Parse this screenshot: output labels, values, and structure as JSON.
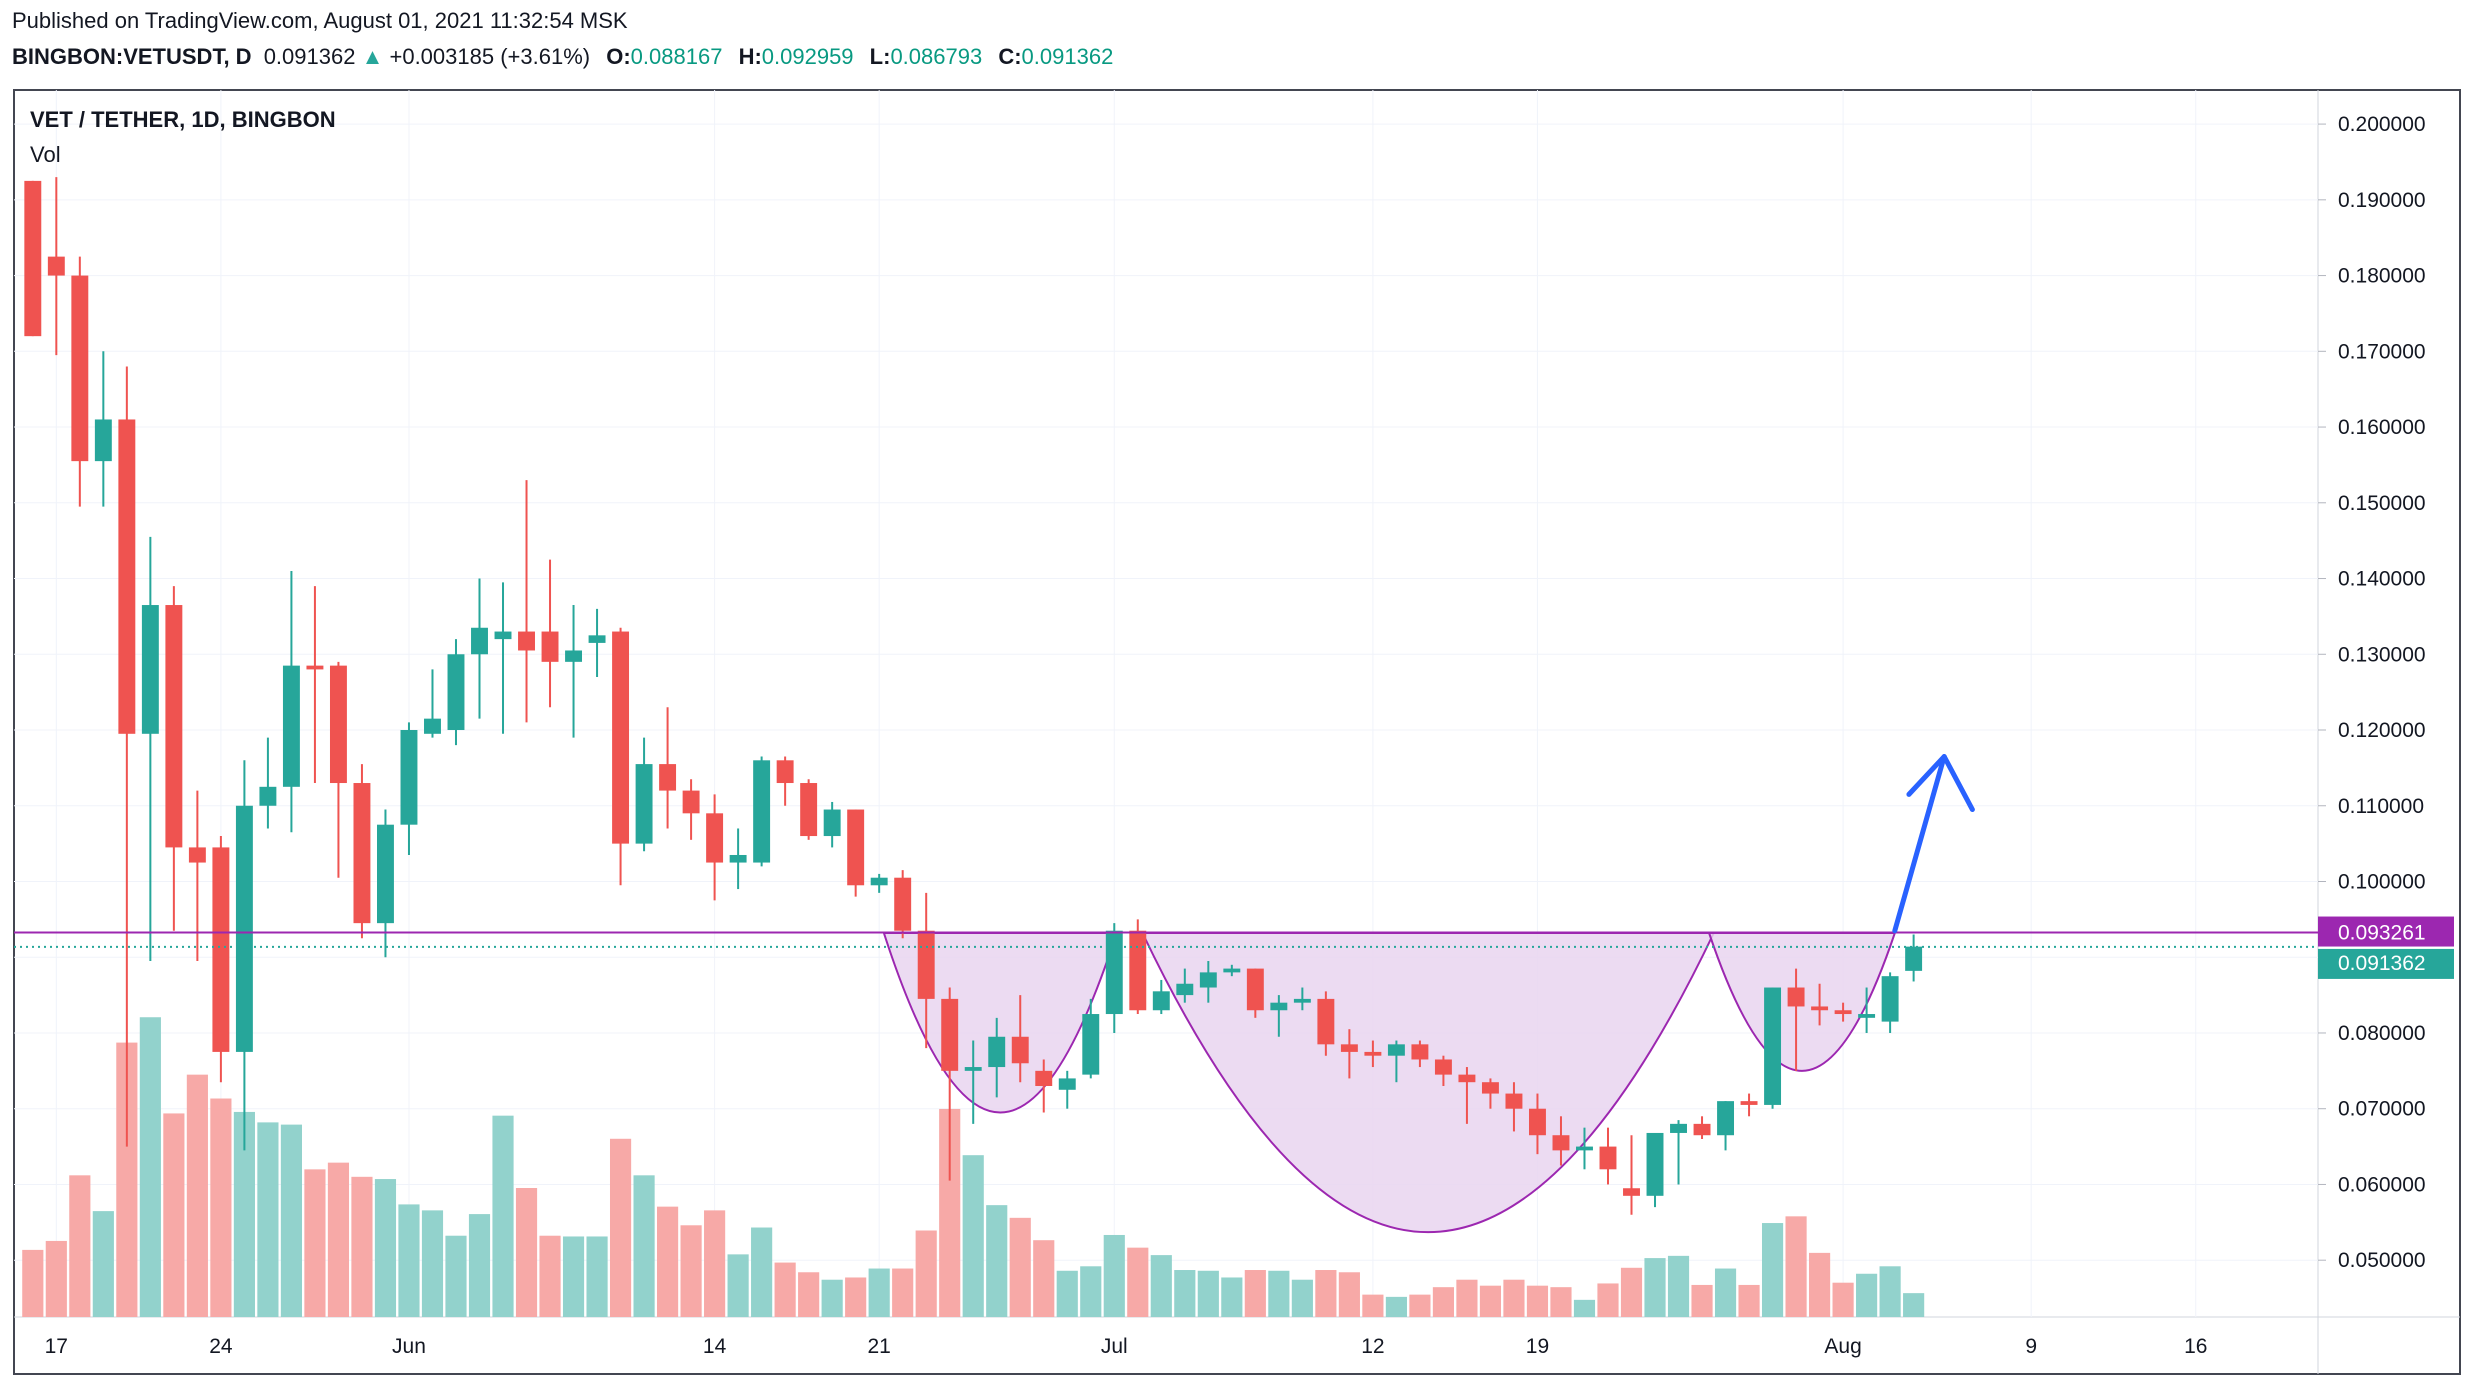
{
  "header": {
    "published": "Published on TradingView.com, August 01, 2021 11:32:54 MSK",
    "symbol": "BINGBON:VETUSDT, D",
    "last": "0.091362",
    "arrow": "▲",
    "change": "+0.003185 (+3.61%)",
    "o_label": "O:",
    "o_value": "0.088167",
    "h_label": "H:",
    "h_value": "0.092959",
    "l_label": "L:",
    "l_value": "0.086793",
    "c_label": "C:",
    "c_value": "0.091362"
  },
  "pane": {
    "title": "VET / TETHER, 1D, BINGBON",
    "volume_label": "Vol"
  },
  "colors": {
    "up": "#26a69a",
    "down": "#ef5350",
    "up_volume": "#92d2cc",
    "down_volume": "#f7a9a7",
    "pattern_fill": "#e9d5f0",
    "pattern_stroke": "#9c27b0",
    "arrow": "#2962ff",
    "resistance_badge": "#9c27b0",
    "price_badge": "#26a69a"
  },
  "chart_data": {
    "type": "candlestick",
    "y_axis": {
      "ticks": [
        "0.200000",
        "0.190000",
        "0.180000",
        "0.170000",
        "0.160000",
        "0.150000",
        "0.140000",
        "0.130000",
        "0.120000",
        "0.110000",
        "0.100000",
        "0.090000",
        "0.080000",
        "0.070000",
        "0.060000",
        "0.050000"
      ],
      "range": [
        0.0425,
        0.2045
      ]
    },
    "x_axis": {
      "ticks": [
        {
          "label": "17",
          "day": 0
        },
        {
          "label": "24",
          "day": 7
        },
        {
          "label": "Jun",
          "day": 15
        },
        {
          "label": "14",
          "day": 28
        },
        {
          "label": "21",
          "day": 35
        },
        {
          "label": "Jul",
          "day": 45
        },
        {
          "label": "12",
          "day": 56
        },
        {
          "label": "19",
          "day": 63
        },
        {
          "label": "Aug",
          "day": 76
        },
        {
          "label": "9",
          "day": 84
        },
        {
          "label": "16",
          "day": 91
        }
      ],
      "start_date": "2021-05-17",
      "day_range": [
        -1.8,
        96.2
      ]
    },
    "resistance": {
      "value": 0.093261,
      "label": "0.093261"
    },
    "last_price": {
      "value": 0.091362,
      "label": "0.091362"
    },
    "projection": {
      "from": [
        78.2,
        0.0935
      ],
      "to": [
        80.3,
        0.1165
      ],
      "head_left": [
        78.8,
        0.1115
      ],
      "head_right": [
        81.5,
        0.1095
      ]
    },
    "patterns": [
      {
        "name": "left-cup",
        "left_day": 35.2,
        "right_day": 45.1,
        "top": 0.0932,
        "bottom": 0.0695
      },
      {
        "name": "main-cup",
        "left_day": 46.2,
        "right_day": 70.5,
        "top": 0.0932,
        "bottom": 0.0537
      },
      {
        "name": "handle",
        "left_day": 70.3,
        "right_day": 78.2,
        "top": 0.0932,
        "bottom": 0.075
      }
    ],
    "candles": [
      {
        "d": -1,
        "o": 0.1925,
        "h": 0.1925,
        "l": 0.172,
        "c": 0.172,
        "v": 0.0515
      },
      {
        "d": 0,
        "o": 0.1825,
        "h": 0.193,
        "l": 0.1695,
        "c": 0.18,
        "v": 0.0527
      },
      {
        "d": 1,
        "o": 0.18,
        "h": 0.1825,
        "l": 0.1495,
        "c": 0.1555,
        "v": 0.0615
      },
      {
        "d": 2,
        "o": 0.1555,
        "h": 0.17,
        "l": 0.1495,
        "c": 0.161,
        "v": 0.0567
      },
      {
        "d": 3,
        "o": 0.161,
        "h": 0.168,
        "l": 0.065,
        "c": 0.1195,
        "v": 0.0793
      },
      {
        "d": 4,
        "o": 0.1195,
        "h": 0.1455,
        "l": 0.0895,
        "c": 0.1365,
        "v": 0.0827
      },
      {
        "d": 5,
        "o": 0.1365,
        "h": 0.139,
        "l": 0.0935,
        "c": 0.1045,
        "v": 0.0698
      },
      {
        "d": 6,
        "o": 0.1045,
        "h": 0.112,
        "l": 0.0895,
        "c": 0.1025,
        "v": 0.075
      },
      {
        "d": 7,
        "o": 0.1045,
        "h": 0.106,
        "l": 0.0735,
        "c": 0.0775,
        "v": 0.0718
      },
      {
        "d": 8,
        "o": 0.0775,
        "h": 0.116,
        "l": 0.0645,
        "c": 0.11,
        "v": 0.07
      },
      {
        "d": 9,
        "o": 0.11,
        "h": 0.119,
        "l": 0.107,
        "c": 0.1125,
        "v": 0.0686
      },
      {
        "d": 10,
        "o": 0.1125,
        "h": 0.141,
        "l": 0.1065,
        "c": 0.1285,
        "v": 0.0683
      },
      {
        "d": 11,
        "o": 0.1285,
        "h": 0.139,
        "l": 0.113,
        "c": 0.128,
        "v": 0.0623
      },
      {
        "d": 12,
        "o": 0.1285,
        "h": 0.129,
        "l": 0.1005,
        "c": 0.113,
        "v": 0.0632
      },
      {
        "d": 13,
        "o": 0.113,
        "h": 0.1155,
        "l": 0.0925,
        "c": 0.0945,
        "v": 0.0613
      },
      {
        "d": 14,
        "o": 0.0945,
        "h": 0.1095,
        "l": 0.09,
        "c": 0.1075,
        "v": 0.061
      },
      {
        "d": 15,
        "o": 0.1075,
        "h": 0.121,
        "l": 0.1035,
        "c": 0.12,
        "v": 0.0576
      },
      {
        "d": 16,
        "o": 0.1195,
        "h": 0.128,
        "l": 0.119,
        "c": 0.1215,
        "v": 0.0568
      },
      {
        "d": 17,
        "o": 0.12,
        "h": 0.132,
        "l": 0.118,
        "c": 0.13,
        "v": 0.0534
      },
      {
        "d": 18,
        "o": 0.13,
        "h": 0.14,
        "l": 0.1215,
        "c": 0.1335,
        "v": 0.0563
      },
      {
        "d": 19,
        "o": 0.132,
        "h": 0.1395,
        "l": 0.1195,
        "c": 0.133,
        "v": 0.0695
      },
      {
        "d": 20,
        "o": 0.133,
        "h": 0.153,
        "l": 0.121,
        "c": 0.1305,
        "v": 0.0598
      },
      {
        "d": 21,
        "o": 0.133,
        "h": 0.1425,
        "l": 0.123,
        "c": 0.129,
        "v": 0.0534
      },
      {
        "d": 22,
        "o": 0.129,
        "h": 0.1365,
        "l": 0.119,
        "c": 0.1305,
        "v": 0.0533
      },
      {
        "d": 23,
        "o": 0.1315,
        "h": 0.136,
        "l": 0.127,
        "c": 0.1325,
        "v": 0.0533
      },
      {
        "d": 24,
        "o": 0.133,
        "h": 0.1335,
        "l": 0.0995,
        "c": 0.105,
        "v": 0.0664
      },
      {
        "d": 25,
        "o": 0.105,
        "h": 0.119,
        "l": 0.104,
        "c": 0.1155,
        "v": 0.0615
      },
      {
        "d": 26,
        "o": 0.1155,
        "h": 0.123,
        "l": 0.107,
        "c": 0.112,
        "v": 0.0573
      },
      {
        "d": 27,
        "o": 0.112,
        "h": 0.1135,
        "l": 0.1055,
        "c": 0.109,
        "v": 0.0548
      },
      {
        "d": 28,
        "o": 0.109,
        "h": 0.1115,
        "l": 0.0975,
        "c": 0.1025,
        "v": 0.0568
      },
      {
        "d": 29,
        "o": 0.1025,
        "h": 0.107,
        "l": 0.099,
        "c": 0.1035,
        "v": 0.0509
      },
      {
        "d": 30,
        "o": 0.1025,
        "h": 0.1165,
        "l": 0.102,
        "c": 0.116,
        "v": 0.0545
      },
      {
        "d": 31,
        "o": 0.116,
        "h": 0.1165,
        "l": 0.11,
        "c": 0.113,
        "v": 0.0498
      },
      {
        "d": 32,
        "o": 0.113,
        "h": 0.1135,
        "l": 0.1055,
        "c": 0.106,
        "v": 0.0485
      },
      {
        "d": 33,
        "o": 0.106,
        "h": 0.1105,
        "l": 0.1045,
        "c": 0.1095,
        "v": 0.0475
      },
      {
        "d": 34,
        "o": 0.1095,
        "h": 0.1095,
        "l": 0.098,
        "c": 0.0995,
        "v": 0.0478
      },
      {
        "d": 35,
        "o": 0.0995,
        "h": 0.101,
        "l": 0.0985,
        "c": 0.1005,
        "v": 0.049
      },
      {
        "d": 36,
        "o": 0.1005,
        "h": 0.1015,
        "l": 0.0925,
        "c": 0.0935,
        "v": 0.049
      },
      {
        "d": 37,
        "o": 0.0935,
        "h": 0.0985,
        "l": 0.078,
        "c": 0.0845,
        "v": 0.0541
      },
      {
        "d": 38,
        "o": 0.0845,
        "h": 0.086,
        "l": 0.0605,
        "c": 0.075,
        "v": 0.0704
      },
      {
        "d": 39,
        "o": 0.075,
        "h": 0.079,
        "l": 0.068,
        "c": 0.0755,
        "v": 0.0642
      },
      {
        "d": 40,
        "o": 0.0755,
        "h": 0.082,
        "l": 0.0715,
        "c": 0.0795,
        "v": 0.0575
      },
      {
        "d": 41,
        "o": 0.0795,
        "h": 0.085,
        "l": 0.0735,
        "c": 0.076,
        "v": 0.0558
      },
      {
        "d": 42,
        "o": 0.075,
        "h": 0.0765,
        "l": 0.0695,
        "c": 0.073,
        "v": 0.0528
      },
      {
        "d": 43,
        "o": 0.0725,
        "h": 0.075,
        "l": 0.07,
        "c": 0.074,
        "v": 0.0487
      },
      {
        "d": 44,
        "o": 0.0745,
        "h": 0.0845,
        "l": 0.074,
        "c": 0.0825,
        "v": 0.0493
      },
      {
        "d": 45,
        "o": 0.0825,
        "h": 0.0945,
        "l": 0.08,
        "c": 0.0935,
        "v": 0.0535
      },
      {
        "d": 46,
        "o": 0.0935,
        "h": 0.095,
        "l": 0.0825,
        "c": 0.083,
        "v": 0.0518
      },
      {
        "d": 47,
        "o": 0.083,
        "h": 0.087,
        "l": 0.0825,
        "c": 0.0855,
        "v": 0.0508
      },
      {
        "d": 48,
        "o": 0.085,
        "h": 0.0885,
        "l": 0.084,
        "c": 0.0865,
        "v": 0.0488
      },
      {
        "d": 49,
        "o": 0.086,
        "h": 0.0895,
        "l": 0.084,
        "c": 0.088,
        "v": 0.0487
      },
      {
        "d": 50,
        "o": 0.088,
        "h": 0.089,
        "l": 0.0875,
        "c": 0.0885,
        "v": 0.0478
      },
      {
        "d": 51,
        "o": 0.0885,
        "h": 0.0885,
        "l": 0.082,
        "c": 0.083,
        "v": 0.0488
      },
      {
        "d": 52,
        "o": 0.083,
        "h": 0.085,
        "l": 0.0795,
        "c": 0.084,
        "v": 0.0487
      },
      {
        "d": 53,
        "o": 0.084,
        "h": 0.086,
        "l": 0.083,
        "c": 0.0845,
        "v": 0.0475
      },
      {
        "d": 54,
        "o": 0.0845,
        "h": 0.0855,
        "l": 0.077,
        "c": 0.0785,
        "v": 0.0488
      },
      {
        "d": 55,
        "o": 0.0785,
        "h": 0.0805,
        "l": 0.074,
        "c": 0.0775,
        "v": 0.0485
      },
      {
        "d": 56,
        "o": 0.0775,
        "h": 0.079,
        "l": 0.0755,
        "c": 0.077,
        "v": 0.0455
      },
      {
        "d": 57,
        "o": 0.077,
        "h": 0.079,
        "l": 0.0735,
        "c": 0.0785,
        "v": 0.0452
      },
      {
        "d": 58,
        "o": 0.0785,
        "h": 0.079,
        "l": 0.0755,
        "c": 0.0765,
        "v": 0.0455
      },
      {
        "d": 59,
        "o": 0.0765,
        "h": 0.077,
        "l": 0.073,
        "c": 0.0745,
        "v": 0.0465
      },
      {
        "d": 60,
        "o": 0.0745,
        "h": 0.0755,
        "l": 0.068,
        "c": 0.0735,
        "v": 0.0475
      },
      {
        "d": 61,
        "o": 0.0735,
        "h": 0.074,
        "l": 0.07,
        "c": 0.072,
        "v": 0.0467
      },
      {
        "d": 62,
        "o": 0.072,
        "h": 0.0735,
        "l": 0.067,
        "c": 0.07,
        "v": 0.0475
      },
      {
        "d": 63,
        "o": 0.07,
        "h": 0.072,
        "l": 0.064,
        "c": 0.0665,
        "v": 0.0467
      },
      {
        "d": 64,
        "o": 0.0665,
        "h": 0.069,
        "l": 0.0625,
        "c": 0.0645,
        "v": 0.0465
      },
      {
        "d": 65,
        "o": 0.0645,
        "h": 0.0675,
        "l": 0.062,
        "c": 0.065,
        "v": 0.0448
      },
      {
        "d": 66,
        "o": 0.065,
        "h": 0.0675,
        "l": 0.06,
        "c": 0.062,
        "v": 0.047
      },
      {
        "d": 67,
        "o": 0.0595,
        "h": 0.0665,
        "l": 0.056,
        "c": 0.0585,
        "v": 0.0491
      },
      {
        "d": 68,
        "o": 0.0585,
        "h": 0.0655,
        "l": 0.057,
        "c": 0.0668,
        "v": 0.0504
      },
      {
        "d": 69,
        "o": 0.0668,
        "h": 0.0685,
        "l": 0.06,
        "c": 0.068,
        "v": 0.0507
      },
      {
        "d": 70,
        "o": 0.068,
        "h": 0.069,
        "l": 0.066,
        "c": 0.0665,
        "v": 0.0468
      },
      {
        "d": 71,
        "o": 0.0665,
        "h": 0.071,
        "l": 0.0645,
        "c": 0.071,
        "v": 0.049
      },
      {
        "d": 72,
        "o": 0.071,
        "h": 0.072,
        "l": 0.069,
        "c": 0.0705,
        "v": 0.0468
      },
      {
        "d": 73,
        "o": 0.0705,
        "h": 0.086,
        "l": 0.07,
        "c": 0.086,
        "v": 0.0551
      },
      {
        "d": 74,
        "o": 0.086,
        "h": 0.0885,
        "l": 0.075,
        "c": 0.0835,
        "v": 0.056
      },
      {
        "d": 75,
        "o": 0.0835,
        "h": 0.0865,
        "l": 0.081,
        "c": 0.083,
        "v": 0.0511
      },
      {
        "d": 76,
        "o": 0.083,
        "h": 0.084,
        "l": 0.0815,
        "c": 0.0825,
        "v": 0.0471
      },
      {
        "d": 77,
        "o": 0.082,
        "h": 0.086,
        "l": 0.08,
        "c": 0.0825,
        "v": 0.0483
      },
      {
        "d": 78,
        "o": 0.0815,
        "h": 0.088,
        "l": 0.08,
        "c": 0.0875,
        "v": 0.0493
      },
      {
        "d": 79,
        "o": 0.0882,
        "h": 0.093,
        "l": 0.0868,
        "c": 0.0914,
        "v": 0.0457
      }
    ]
  }
}
